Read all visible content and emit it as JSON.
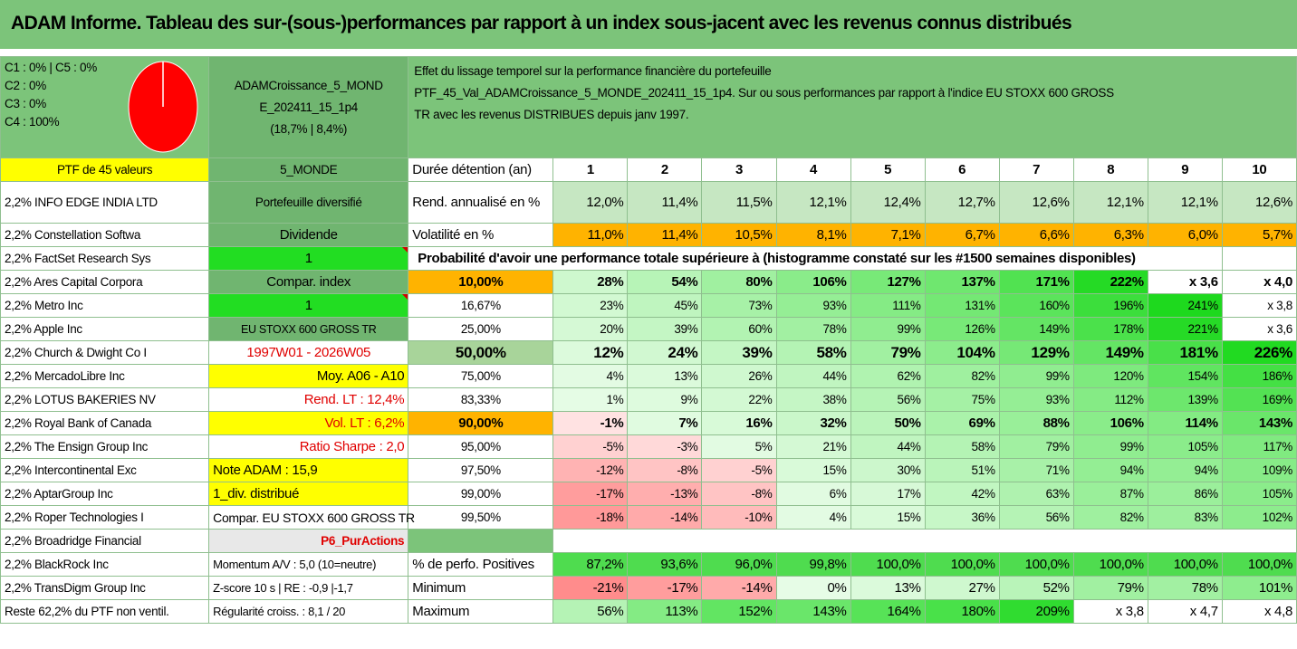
{
  "title": "ADAM Informe. Tableau des sur-(sous-)performances par rapport à un index sous-jacent avec les revenus connus distribués",
  "legend": {
    "c1_c5": "C1 : 0% | C5 : 0%",
    "c2": "C2 : 0%",
    "c3": "C3 : 0%",
    "c4": "C4 : 100%",
    "pie_color": "#ff0000"
  },
  "portfolio": {
    "name_line1": "ADAMCroissance_5_MOND",
    "name_line2": "E_202411_15_1p4",
    "name_line3": "(18,7% | 8,4%)"
  },
  "description": {
    "line1": "Effet du lissage temporel sur la performance financière du portefeuille",
    "line2": "PTF_45_Val_ADAMCroissance_5_MONDE_202411_15_1p4. Sur ou sous performances par rapport à l'indice EU STOXX 600 GROSS",
    "line3": "TR avec les revenus DISTRIBUES depuis janv 1997."
  },
  "header": {
    "ptf": "PTF de 45 valeurs",
    "category": "5_MONDE",
    "duration_label": "Durée détention (an)",
    "years": [
      "1",
      "2",
      "3",
      "4",
      "5",
      "6",
      "7",
      "8",
      "9",
      "10"
    ]
  },
  "holdings": [
    "2,2% INFO EDGE INDIA LTD",
    "2,2% Constellation Softwa",
    "2,2% FactSet Research Sys",
    "2,2% Ares Capital Corpora",
    "2,2% Metro Inc",
    "2,2% Apple Inc",
    "2,2% Church & Dwight Co I",
    "2,2% MercadoLibre Inc",
    "2,2% LOTUS BAKERIES NV",
    "2,2% Royal Bank of Canada",
    "2,2% The Ensign Group Inc",
    "2,2% Intercontinental Exc",
    "2,2% AptarGroup Inc",
    "2,2% Roper Technologies I",
    "2,2% Broadridge Financial",
    "2,2% BlackRock Inc",
    "2,2% TransDigm Group Inc",
    "Reste 62,2% du PTF non ventil."
  ],
  "side": {
    "diversified": "Portefeuille diversifié",
    "dividend": "Dividende",
    "one_a": "1",
    "compar_index": "Compar. index",
    "one_b": "1",
    "index_name": "EU STOXX 600 GROSS TR",
    "period": "1997W01 - 2026W05",
    "moy": "Moy. A06 - A10",
    "rend_lt": "Rend. LT : 12,4%",
    "vol_lt": "Vol. LT : 6,2%",
    "sharpe": "Ratio Sharpe : 2,0",
    "note": "Note ADAM : 15,9",
    "div": "1_div. distribué",
    "compar_text": "Compar. EU STOXX 600 GROSS TR",
    "p6": "P6_PurActions",
    "momentum": "Momentum A/V : 5,0 (10=neutre)",
    "zscore": "Z-score 10 s | RE : -0,9 |-1,7",
    "regularity": "Régularité croiss. : 8,1 / 20"
  },
  "rend": {
    "label": "Rend. annualisé en %",
    "values": [
      "12,0%",
      "11,4%",
      "11,5%",
      "12,1%",
      "12,4%",
      "12,7%",
      "12,6%",
      "12,1%",
      "12,1%",
      "12,6%"
    ]
  },
  "vol": {
    "label": "Volatilité en %",
    "values": [
      "11,0%",
      "11,4%",
      "10,5%",
      "8,1%",
      "7,1%",
      "6,7%",
      "6,6%",
      "6,3%",
      "6,0%",
      "5,7%"
    ]
  },
  "prob_title": "Probabilité d'avoir une performance totale supérieure à (histogramme constaté sur les #1500 semaines disponibles)",
  "prob_rows": [
    {
      "p": "10,00%",
      "v": [
        "28%",
        "54%",
        "80%",
        "106%",
        "127%",
        "137%",
        "171%",
        "222%",
        "x 3,6",
        "x 4,0"
      ]
    },
    {
      "p": "16,67%",
      "v": [
        "23%",
        "45%",
        "73%",
        "93%",
        "111%",
        "131%",
        "160%",
        "196%",
        "241%",
        "x 3,8"
      ]
    },
    {
      "p": "25,00%",
      "v": [
        "20%",
        "39%",
        "60%",
        "78%",
        "99%",
        "126%",
        "149%",
        "178%",
        "221%",
        "x 3,6"
      ]
    },
    {
      "p": "50,00%",
      "v": [
        "12%",
        "24%",
        "39%",
        "58%",
        "79%",
        "104%",
        "129%",
        "149%",
        "181%",
        "226%"
      ]
    },
    {
      "p": "75,00%",
      "v": [
        "4%",
        "13%",
        "26%",
        "44%",
        "62%",
        "82%",
        "99%",
        "120%",
        "154%",
        "186%"
      ]
    },
    {
      "p": "83,33%",
      "v": [
        "1%",
        "9%",
        "22%",
        "38%",
        "56%",
        "75%",
        "93%",
        "112%",
        "139%",
        "169%"
      ]
    },
    {
      "p": "90,00%",
      "v": [
        "-1%",
        "7%",
        "16%",
        "32%",
        "50%",
        "69%",
        "88%",
        "106%",
        "114%",
        "143%"
      ]
    },
    {
      "p": "95,00%",
      "v": [
        "-5%",
        "-3%",
        "5%",
        "21%",
        "44%",
        "58%",
        "79%",
        "99%",
        "105%",
        "117%"
      ]
    },
    {
      "p": "97,50%",
      "v": [
        "-12%",
        "-8%",
        "-5%",
        "15%",
        "30%",
        "51%",
        "71%",
        "94%",
        "94%",
        "109%"
      ]
    },
    {
      "p": "99,00%",
      "v": [
        "-17%",
        "-13%",
        "-8%",
        "6%",
        "17%",
        "42%",
        "63%",
        "87%",
        "86%",
        "105%"
      ]
    },
    {
      "p": "99,50%",
      "v": [
        "-18%",
        "-14%",
        "-10%",
        "4%",
        "15%",
        "36%",
        "56%",
        "82%",
        "83%",
        "102%"
      ]
    }
  ],
  "positives": {
    "label": "% de perfo. Positives",
    "values": [
      "87,2%",
      "93,6%",
      "96,0%",
      "99,8%",
      "100,0%",
      "100,0%",
      "100,0%",
      "100,0%",
      "100,0%",
      "100,0%"
    ]
  },
  "minimum": {
    "label": "Minimum",
    "values": [
      "-21%",
      "-17%",
      "-14%",
      "0%",
      "13%",
      "27%",
      "52%",
      "79%",
      "78%",
      "101%"
    ]
  },
  "maximum": {
    "label": "Maximum",
    "values": [
      "56%",
      "113%",
      "152%",
      "143%",
      "164%",
      "180%",
      "209%",
      "x 3,8",
      "x 4,7",
      "x 4,8"
    ]
  }
}
